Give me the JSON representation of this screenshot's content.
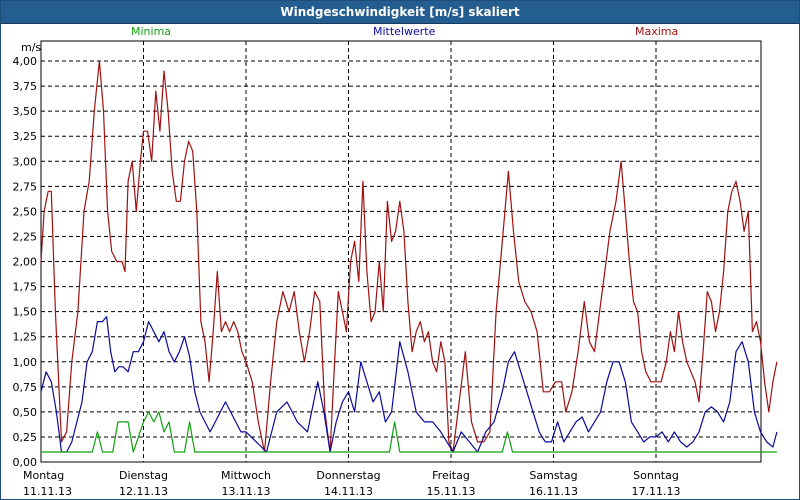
{
  "window": {
    "title": "Windgeschwindigkeit [m/s] skaliert"
  },
  "chart_data": {
    "type": "line",
    "title": "Windgeschwindigkeit [m/s] skaliert",
    "ylabel": "m/s",
    "ylim": [
      0,
      4
    ],
    "yticks": [
      "0,00",
      "0,25",
      "0,50",
      "0,75",
      "1,00",
      "1,25",
      "1,50",
      "1,75",
      "2,00",
      "2,25",
      "2,50",
      "2,75",
      "3,00",
      "3,25",
      "3,50",
      "3,75",
      "4,00"
    ],
    "xlim": [
      0,
      7
    ],
    "xticks": [
      {
        "x": 0,
        "day": "Montag",
        "date": "11.11.13"
      },
      {
        "x": 1,
        "day": "Dienstag",
        "date": "12.11.13"
      },
      {
        "x": 2,
        "day": "Mittwoch",
        "date": "13.11.13"
      },
      {
        "x": 3,
        "day": "Donnerstag",
        "date": "14.11.13"
      },
      {
        "x": 4,
        "day": "Freitag",
        "date": "15.11.13"
      },
      {
        "x": 5,
        "day": "Samstag",
        "date": "16.11.13"
      },
      {
        "x": 6,
        "day": "Sonntag",
        "date": "17.11.13"
      }
    ],
    "grid": true,
    "legend": "top",
    "series": [
      {
        "name": "Maxima",
        "color": "#a01010",
        "points": [
          [
            0.0,
            2.0
          ],
          [
            0.03,
            2.5
          ],
          [
            0.07,
            2.7
          ],
          [
            0.1,
            2.7
          ],
          [
            0.14,
            1.5
          ],
          [
            0.2,
            0.2
          ],
          [
            0.25,
            0.3
          ],
          [
            0.3,
            1.0
          ],
          [
            0.36,
            1.5
          ],
          [
            0.42,
            2.5
          ],
          [
            0.47,
            2.8
          ],
          [
            0.52,
            3.5
          ],
          [
            0.57,
            4.0
          ],
          [
            0.61,
            3.5
          ],
          [
            0.65,
            2.5
          ],
          [
            0.69,
            2.1
          ],
          [
            0.74,
            2.0
          ],
          [
            0.79,
            2.0
          ],
          [
            0.82,
            1.9
          ],
          [
            0.85,
            2.8
          ],
          [
            0.89,
            3.0
          ],
          [
            0.93,
            2.5
          ],
          [
            0.97,
            3.0
          ],
          [
            1.0,
            3.3
          ],
          [
            1.04,
            3.3
          ],
          [
            1.08,
            3.0
          ],
          [
            1.12,
            3.7
          ],
          [
            1.16,
            3.3
          ],
          [
            1.2,
            3.9
          ],
          [
            1.24,
            3.5
          ],
          [
            1.28,
            2.9
          ],
          [
            1.32,
            2.6
          ],
          [
            1.36,
            2.6
          ],
          [
            1.4,
            3.0
          ],
          [
            1.44,
            3.2
          ],
          [
            1.48,
            3.1
          ],
          [
            1.52,
            2.5
          ],
          [
            1.56,
            1.4
          ],
          [
            1.6,
            1.2
          ],
          [
            1.64,
            0.8
          ],
          [
            1.68,
            1.3
          ],
          [
            1.72,
            1.9
          ],
          [
            1.76,
            1.3
          ],
          [
            1.8,
            1.4
          ],
          [
            1.84,
            1.3
          ],
          [
            1.88,
            1.4
          ],
          [
            1.92,
            1.3
          ],
          [
            1.96,
            1.1
          ],
          [
            2.0,
            1.0
          ],
          [
            2.06,
            0.8
          ],
          [
            2.12,
            0.4
          ],
          [
            2.18,
            0.1
          ],
          [
            2.24,
            0.8
          ],
          [
            2.3,
            1.4
          ],
          [
            2.36,
            1.7
          ],
          [
            2.42,
            1.5
          ],
          [
            2.47,
            1.7
          ],
          [
            2.52,
            1.3
          ],
          [
            2.57,
            1.0
          ],
          [
            2.62,
            1.3
          ],
          [
            2.67,
            1.7
          ],
          [
            2.72,
            1.6
          ],
          [
            2.77,
            0.5
          ],
          [
            2.82,
            0.1
          ],
          [
            2.86,
            0.9
          ],
          [
            2.9,
            1.7
          ],
          [
            2.94,
            1.5
          ],
          [
            2.98,
            1.3
          ],
          [
            3.02,
            2.0
          ],
          [
            3.06,
            2.2
          ],
          [
            3.1,
            1.8
          ],
          [
            3.14,
            2.8
          ],
          [
            3.18,
            1.9
          ],
          [
            3.22,
            1.4
          ],
          [
            3.26,
            1.5
          ],
          [
            3.3,
            2.0
          ],
          [
            3.34,
            1.5
          ],
          [
            3.38,
            2.6
          ],
          [
            3.42,
            2.2
          ],
          [
            3.46,
            2.3
          ],
          [
            3.5,
            2.6
          ],
          [
            3.54,
            2.3
          ],
          [
            3.58,
            1.6
          ],
          [
            3.62,
            1.1
          ],
          [
            3.66,
            1.3
          ],
          [
            3.7,
            1.4
          ],
          [
            3.74,
            1.2
          ],
          [
            3.78,
            1.3
          ],
          [
            3.82,
            1.0
          ],
          [
            3.86,
            0.9
          ],
          [
            3.9,
            1.2
          ],
          [
            3.94,
            1.0
          ],
          [
            3.98,
            0.2
          ],
          [
            4.02,
            0.1
          ],
          [
            4.08,
            0.6
          ],
          [
            4.14,
            1.1
          ],
          [
            4.2,
            0.4
          ],
          [
            4.26,
            0.2
          ],
          [
            4.32,
            0.2
          ],
          [
            4.38,
            0.3
          ],
          [
            4.44,
            1.5
          ],
          [
            4.5,
            2.2
          ],
          [
            4.56,
            2.9
          ],
          [
            4.61,
            2.3
          ],
          [
            4.66,
            1.8
          ],
          [
            4.72,
            1.6
          ],
          [
            4.78,
            1.5
          ],
          [
            4.84,
            1.3
          ],
          [
            4.9,
            0.7
          ],
          [
            4.96,
            0.7
          ],
          [
            5.02,
            0.8
          ],
          [
            5.08,
            0.8
          ],
          [
            5.12,
            0.5
          ],
          [
            5.18,
            0.7
          ],
          [
            5.24,
            1.1
          ],
          [
            5.3,
            1.6
          ],
          [
            5.35,
            1.2
          ],
          [
            5.4,
            1.1
          ],
          [
            5.45,
            1.5
          ],
          [
            5.5,
            1.9
          ],
          [
            5.55,
            2.3
          ],
          [
            5.61,
            2.6
          ],
          [
            5.66,
            3.0
          ],
          [
            5.7,
            2.5
          ],
          [
            5.74,
            2.0
          ],
          [
            5.78,
            1.6
          ],
          [
            5.82,
            1.5
          ],
          [
            5.86,
            1.1
          ],
          [
            5.9,
            0.9
          ],
          [
            5.95,
            0.8
          ],
          [
            6.0,
            0.8
          ],
          [
            6.05,
            0.8
          ],
          [
            6.1,
            1.0
          ],
          [
            6.14,
            1.3
          ],
          [
            6.18,
            1.1
          ],
          [
            6.22,
            1.5
          ],
          [
            6.26,
            1.2
          ],
          [
            6.3,
            1.0
          ],
          [
            6.34,
            0.9
          ],
          [
            6.38,
            0.8
          ],
          [
            6.42,
            0.6
          ],
          [
            6.46,
            1.1
          ],
          [
            6.5,
            1.7
          ],
          [
            6.54,
            1.6
          ],
          [
            6.58,
            1.3
          ],
          [
            6.62,
            1.5
          ],
          [
            6.66,
            1.9
          ],
          [
            6.7,
            2.5
          ],
          [
            6.74,
            2.7
          ],
          [
            6.78,
            2.8
          ],
          [
            6.82,
            2.6
          ],
          [
            6.86,
            2.3
          ],
          [
            6.9,
            2.5
          ],
          [
            6.94,
            1.3
          ],
          [
            6.98,
            1.4
          ],
          [
            7.02,
            1.2
          ],
          [
            7.06,
            0.8
          ],
          [
            7.1,
            0.5
          ],
          [
            7.14,
            0.8
          ],
          [
            7.18,
            1.0
          ]
        ]
      },
      {
        "name": "Mittelwerte",
        "color": "#0a0a9a",
        "points": [
          [
            0.0,
            0.7
          ],
          [
            0.05,
            0.9
          ],
          [
            0.1,
            0.8
          ],
          [
            0.15,
            0.5
          ],
          [
            0.2,
            0.1
          ],
          [
            0.25,
            0.1
          ],
          [
            0.3,
            0.2
          ],
          [
            0.35,
            0.4
          ],
          [
            0.4,
            0.6
          ],
          [
            0.45,
            1.0
          ],
          [
            0.5,
            1.1
          ],
          [
            0.55,
            1.4
          ],
          [
            0.6,
            1.4
          ],
          [
            0.64,
            1.45
          ],
          [
            0.68,
            1.1
          ],
          [
            0.72,
            0.9
          ],
          [
            0.76,
            0.95
          ],
          [
            0.8,
            0.95
          ],
          [
            0.85,
            0.9
          ],
          [
            0.9,
            1.1
          ],
          [
            0.95,
            1.1
          ],
          [
            1.0,
            1.2
          ],
          [
            1.05,
            1.4
          ],
          [
            1.1,
            1.3
          ],
          [
            1.15,
            1.2
          ],
          [
            1.2,
            1.3
          ],
          [
            1.25,
            1.1
          ],
          [
            1.3,
            1.0
          ],
          [
            1.35,
            1.1
          ],
          [
            1.4,
            1.25
          ],
          [
            1.45,
            1.05
          ],
          [
            1.5,
            0.7
          ],
          [
            1.55,
            0.5
          ],
          [
            1.6,
            0.4
          ],
          [
            1.65,
            0.3
          ],
          [
            1.7,
            0.4
          ],
          [
            1.75,
            0.5
          ],
          [
            1.8,
            0.6
          ],
          [
            1.85,
            0.5
          ],
          [
            1.9,
            0.4
          ],
          [
            1.95,
            0.3
          ],
          [
            2.0,
            0.3
          ],
          [
            2.1,
            0.2
          ],
          [
            2.2,
            0.1
          ],
          [
            2.3,
            0.5
          ],
          [
            2.4,
            0.6
          ],
          [
            2.5,
            0.4
          ],
          [
            2.6,
            0.3
          ],
          [
            2.7,
            0.8
          ],
          [
            2.76,
            0.5
          ],
          [
            2.82,
            0.1
          ],
          [
            2.88,
            0.4
          ],
          [
            2.94,
            0.6
          ],
          [
            3.0,
            0.7
          ],
          [
            3.06,
            0.5
          ],
          [
            3.12,
            1.0
          ],
          [
            3.18,
            0.8
          ],
          [
            3.24,
            0.6
          ],
          [
            3.3,
            0.7
          ],
          [
            3.36,
            0.4
          ],
          [
            3.42,
            0.5
          ],
          [
            3.5,
            1.2
          ],
          [
            3.58,
            0.9
          ],
          [
            3.66,
            0.5
          ],
          [
            3.74,
            0.4
          ],
          [
            3.82,
            0.4
          ],
          [
            3.9,
            0.3
          ],
          [
            3.96,
            0.2
          ],
          [
            4.02,
            0.1
          ],
          [
            4.1,
            0.3
          ],
          [
            4.18,
            0.2
          ],
          [
            4.26,
            0.1
          ],
          [
            4.34,
            0.3
          ],
          [
            4.42,
            0.4
          ],
          [
            4.5,
            0.7
          ],
          [
            4.56,
            1.0
          ],
          [
            4.62,
            1.1
          ],
          [
            4.68,
            0.9
          ],
          [
            4.74,
            0.7
          ],
          [
            4.8,
            0.5
          ],
          [
            4.86,
            0.3
          ],
          [
            4.92,
            0.2
          ],
          [
            4.98,
            0.2
          ],
          [
            5.04,
            0.4
          ],
          [
            5.1,
            0.2
          ],
          [
            5.16,
            0.3
          ],
          [
            5.22,
            0.4
          ],
          [
            5.28,
            0.45
          ],
          [
            5.34,
            0.3
          ],
          [
            5.4,
            0.4
          ],
          [
            5.46,
            0.5
          ],
          [
            5.52,
            0.8
          ],
          [
            5.58,
            1.0
          ],
          [
            5.64,
            1.0
          ],
          [
            5.7,
            0.8
          ],
          [
            5.76,
            0.4
          ],
          [
            5.82,
            0.3
          ],
          [
            5.88,
            0.2
          ],
          [
            5.94,
            0.25
          ],
          [
            6.0,
            0.25
          ],
          [
            6.06,
            0.3
          ],
          [
            6.12,
            0.2
          ],
          [
            6.18,
            0.3
          ],
          [
            6.24,
            0.2
          ],
          [
            6.3,
            0.15
          ],
          [
            6.36,
            0.2
          ],
          [
            6.42,
            0.3
          ],
          [
            6.48,
            0.5
          ],
          [
            6.54,
            0.55
          ],
          [
            6.6,
            0.5
          ],
          [
            6.66,
            0.4
          ],
          [
            6.72,
            0.6
          ],
          [
            6.78,
            1.1
          ],
          [
            6.84,
            1.2
          ],
          [
            6.9,
            1.0
          ],
          [
            6.96,
            0.5
          ],
          [
            7.02,
            0.3
          ],
          [
            7.08,
            0.2
          ],
          [
            7.14,
            0.15
          ],
          [
            7.18,
            0.3
          ]
        ]
      },
      {
        "name": "Minima",
        "color": "#10a010",
        "points": [
          [
            0.0,
            0.1
          ],
          [
            0.5,
            0.1
          ],
          [
            0.55,
            0.3
          ],
          [
            0.6,
            0.1
          ],
          [
            0.7,
            0.1
          ],
          [
            0.75,
            0.4
          ],
          [
            0.85,
            0.4
          ],
          [
            0.9,
            0.1
          ],
          [
            1.0,
            0.4
          ],
          [
            1.05,
            0.5
          ],
          [
            1.1,
            0.4
          ],
          [
            1.15,
            0.5
          ],
          [
            1.2,
            0.3
          ],
          [
            1.25,
            0.4
          ],
          [
            1.3,
            0.1
          ],
          [
            1.4,
            0.1
          ],
          [
            1.45,
            0.4
          ],
          [
            1.5,
            0.1
          ],
          [
            1.55,
            0.1
          ],
          [
            2.0,
            0.1
          ],
          [
            3.4,
            0.1
          ],
          [
            3.45,
            0.4
          ],
          [
            3.5,
            0.1
          ],
          [
            4.5,
            0.1
          ],
          [
            4.55,
            0.3
          ],
          [
            4.6,
            0.1
          ],
          [
            7.18,
            0.1
          ]
        ]
      }
    ]
  }
}
